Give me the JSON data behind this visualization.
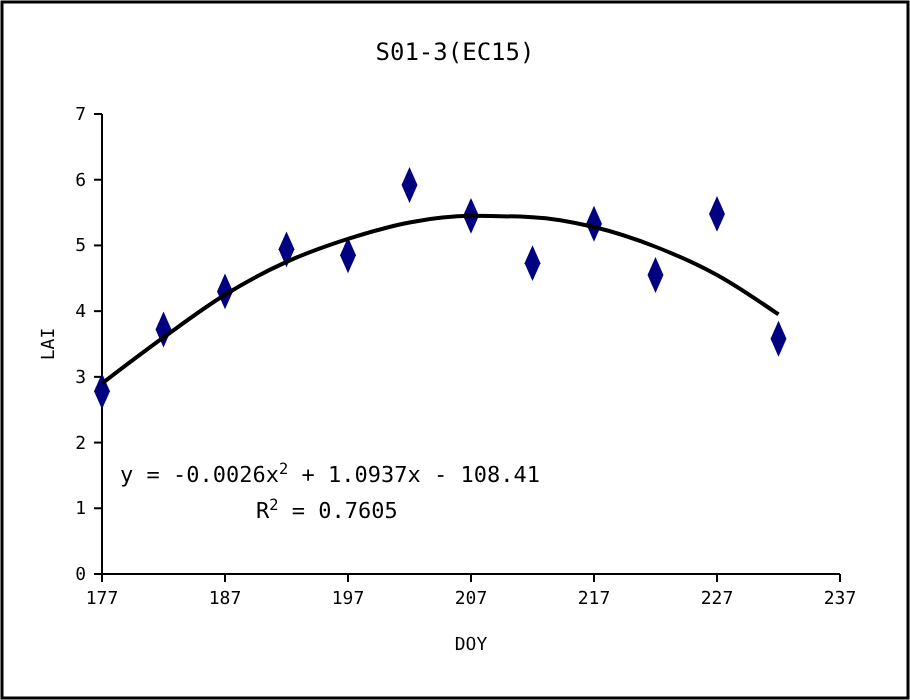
{
  "chart_data": {
    "type": "scatter",
    "title": "S01-3(EC15)",
    "xlabel": "DOY",
    "ylabel": "LAI",
    "xlim": [
      177,
      237
    ],
    "xticks": [
      177,
      187,
      197,
      207,
      217,
      227,
      237
    ],
    "ylim": [
      0,
      7
    ],
    "yticks": [
      0,
      1,
      2,
      3,
      4,
      5,
      6,
      7
    ],
    "grid": false,
    "marker": "diamond",
    "x": [
      177,
      182,
      187,
      192,
      197,
      202,
      207,
      212,
      217,
      222,
      227,
      232
    ],
    "series": [
      {
        "color": "#000080",
        "values": [
          2.78,
          3.72,
          4.3,
          4.94,
          4.85,
          5.92,
          5.45,
          4.73,
          5.33,
          4.55,
          5.48,
          3.58
        ]
      },
      {
        "type": "line",
        "color": "#000000",
        "marker": "none",
        "line_style": "solid",
        "x": [
          177,
          182,
          187,
          192,
          197,
          202,
          207,
          212,
          217,
          222,
          227,
          232
        ],
        "values": [
          2.9,
          3.6,
          4.25,
          4.75,
          5.1,
          5.35,
          5.45,
          5.43,
          5.28,
          4.98,
          4.55,
          3.95
        ]
      }
    ],
    "annotations": [
      "y = -0.0026x$^{2}$ + 1.0937x - 108.41",
      "R$^{2}$ = 0.7605"
    ]
  }
}
